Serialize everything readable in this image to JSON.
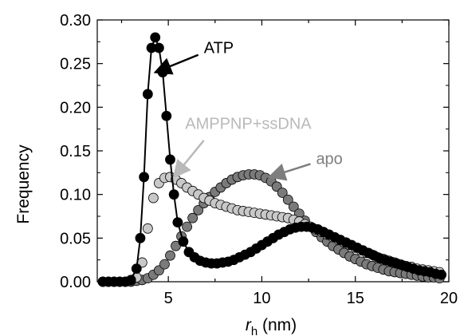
{
  "chart_data": {
    "type": "scatter",
    "title": "",
    "xlabel_main": "r",
    "xlabel_sub": "h",
    "xlabel_unit": " (nm)",
    "ylabel": "Frequency",
    "xlim": [
      1.2,
      20
    ],
    "ylim": [
      0,
      0.3
    ],
    "xticks": [
      "5",
      "10",
      "15",
      "20"
    ],
    "xtick_values": [
      5,
      10,
      15,
      20
    ],
    "yticks": [
      "0.00",
      "0.05",
      "0.10",
      "0.15",
      "0.20",
      "0.25",
      "0.30"
    ],
    "ytick_values": [
      0,
      0.05,
      0.1,
      0.15,
      0.2,
      0.25,
      0.3
    ],
    "grid": false,
    "legend": "annotations with arrows",
    "series": [
      {
        "name": "apo",
        "color": "#7a7a7a",
        "line": false,
        "x": [
          1.5,
          1.8,
          2.1,
          2.4,
          2.7,
          3.0,
          3.3,
          3.6,
          3.9,
          4.2,
          4.5,
          4.8,
          5.1,
          5.4,
          5.7,
          6.0,
          6.3,
          6.6,
          6.9,
          7.2,
          7.5,
          7.8,
          8.1,
          8.4,
          8.7,
          9.0,
          9.3,
          9.6,
          9.9,
          10.2,
          10.5,
          10.8,
          11.1,
          11.4,
          11.7,
          12.0,
          12.3,
          12.6,
          12.9,
          13.2,
          13.5,
          13.8,
          14.1,
          14.4,
          14.7,
          15.0,
          15.3,
          15.6,
          15.9,
          16.2,
          16.5,
          16.8,
          17.1,
          17.4,
          17.7,
          18.0,
          18.3,
          18.6,
          18.9,
          19.2,
          19.5
        ],
        "y": [
          0,
          0,
          0,
          0,
          0,
          0,
          0.001,
          0.002,
          0.004,
          0.008,
          0.013,
          0.02,
          0.03,
          0.041,
          0.052,
          0.063,
          0.073,
          0.082,
          0.09,
          0.097,
          0.103,
          0.108,
          0.113,
          0.117,
          0.12,
          0.122,
          0.123,
          0.123,
          0.122,
          0.119,
          0.115,
          0.109,
          0.102,
          0.094,
          0.086,
          0.078,
          0.07,
          0.063,
          0.057,
          0.051,
          0.046,
          0.041,
          0.037,
          0.033,
          0.029,
          0.026,
          0.023,
          0.02,
          0.018,
          0.016,
          0.014,
          0.012,
          0.011,
          0.01,
          0.009,
          0.008,
          0.007,
          0.006,
          0.005,
          0.005,
          0.004
        ]
      },
      {
        "name": "AMPPNP+ssDNA",
        "color": "#c8c8c8",
        "line": false,
        "x": [
          1.5,
          1.8,
          2.1,
          2.4,
          2.7,
          3.0,
          3.3,
          3.6,
          3.9,
          4.2,
          4.5,
          4.8,
          5.1,
          5.4,
          5.7,
          6.0,
          6.3,
          6.6,
          6.9,
          7.2,
          7.5,
          7.8,
          8.1,
          8.4,
          8.7,
          9.0,
          9.3,
          9.6,
          9.9,
          10.2,
          10.5,
          10.8,
          11.1,
          11.4,
          11.7,
          12.0,
          12.3,
          12.6,
          12.9,
          13.2,
          13.5,
          13.8,
          14.1,
          14.4,
          14.7,
          15.0,
          15.3,
          15.6,
          15.9,
          16.2,
          16.5,
          16.8,
          17.1,
          17.4,
          17.7,
          18.0,
          18.3,
          18.6,
          18.9,
          19.2,
          19.5
        ],
        "y": [
          0,
          0,
          0,
          0,
          0,
          0.001,
          0.005,
          0.022,
          0.061,
          0.096,
          0.113,
          0.119,
          0.12,
          0.117,
          0.113,
          0.108,
          0.104,
          0.1,
          0.096,
          0.093,
          0.09,
          0.088,
          0.086,
          0.084,
          0.082,
          0.081,
          0.08,
          0.079,
          0.078,
          0.077,
          0.076,
          0.075,
          0.074,
          0.073,
          0.071,
          0.069,
          0.066,
          0.063,
          0.06,
          0.057,
          0.054,
          0.051,
          0.048,
          0.045,
          0.042,
          0.039,
          0.036,
          0.033,
          0.031,
          0.028,
          0.026,
          0.024,
          0.022,
          0.02,
          0.018,
          0.017,
          0.015,
          0.014,
          0.013,
          0.012,
          0.011
        ]
      },
      {
        "name": "ATP",
        "color": "#000000",
        "line": true,
        "x": [
          1.5,
          1.8,
          2.1,
          2.4,
          2.7,
          3.0,
          3.3,
          3.5,
          3.7,
          3.9,
          4.1,
          4.3,
          4.5,
          4.7,
          4.9,
          5.1,
          5.3,
          5.5,
          5.8,
          6.1,
          6.4,
          6.7,
          7.0,
          7.3,
          7.6,
          7.9,
          8.2,
          8.5,
          8.8,
          9.1,
          9.4,
          9.7,
          10.0,
          10.3,
          10.6,
          10.9,
          11.2,
          11.5,
          11.8,
          12.1,
          12.4,
          12.7,
          13.0,
          13.3,
          13.6,
          13.9,
          14.2,
          14.5,
          14.8,
          15.1,
          15.4,
          15.7,
          16.0,
          16.3,
          16.6,
          16.9,
          17.2,
          17.5,
          17.8,
          18.1,
          18.4,
          18.7,
          19.0,
          19.3,
          19.6
        ],
        "y": [
          0,
          0,
          0,
          0,
          0,
          0.002,
          0.015,
          0.05,
          0.12,
          0.215,
          0.268,
          0.28,
          0.268,
          0.24,
          0.19,
          0.14,
          0.1,
          0.068,
          0.046,
          0.034,
          0.028,
          0.024,
          0.022,
          0.021,
          0.021,
          0.022,
          0.023,
          0.025,
          0.028,
          0.031,
          0.034,
          0.038,
          0.042,
          0.046,
          0.05,
          0.054,
          0.057,
          0.06,
          0.062,
          0.063,
          0.063,
          0.062,
          0.06,
          0.057,
          0.054,
          0.051,
          0.048,
          0.045,
          0.042,
          0.039,
          0.036,
          0.033,
          0.03,
          0.027,
          0.025,
          0.023,
          0.021,
          0.019,
          0.017,
          0.015,
          0.013,
          0.012,
          0.011,
          0.009,
          0.008
        ]
      }
    ],
    "annotations": [
      {
        "text": "ATP",
        "color": "#000000",
        "label_x": 6.9,
        "label_y": 0.262,
        "arrow_from": [
          6.6,
          0.26
        ],
        "arrow_to": [
          4.3,
          0.24
        ]
      },
      {
        "text": "AMPPNP+ssDNA",
        "color": "#b9b9b9",
        "label_x": 5.9,
        "label_y": 0.175,
        "arrow_from": [
          6.9,
          0.162
        ],
        "arrow_to": [
          5.3,
          0.12
        ]
      },
      {
        "text": "apo",
        "color": "#7e7e7e",
        "label_x": 12.9,
        "label_y": 0.135,
        "arrow_from": [
          12.6,
          0.135
        ],
        "arrow_to": [
          10.4,
          0.12
        ]
      }
    ]
  }
}
